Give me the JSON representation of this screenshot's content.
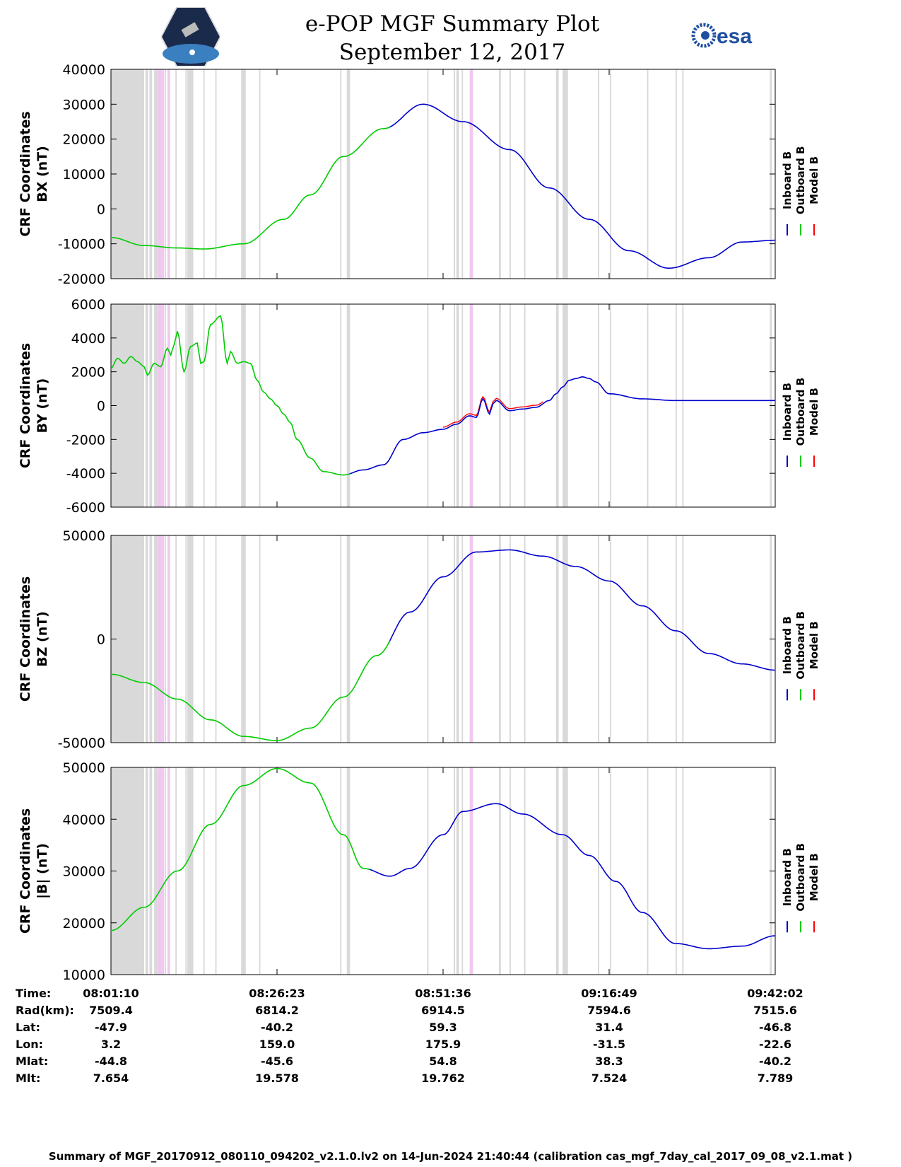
{
  "header": {
    "title": "e-POP MGF Summary Plot",
    "date": "September 12, 2017",
    "logo_left_name": "CASSIOPE",
    "logo_right_name": "esa"
  },
  "colors": {
    "inboard": "#0000cc",
    "outboard": "#00cc00",
    "model": "#ff0000",
    "gap_gray": "#d9d9d9",
    "gap_pink": "#f0c8f0"
  },
  "chart_data": [
    {
      "type": "line",
      "id": "bx",
      "ylabel_line1": "CRF Coordinates",
      "ylabel_line2": "BX (nT)",
      "ylim": [
        -20000,
        40000
      ],
      "yticks": [
        -20000,
        -10000,
        0,
        10000,
        20000,
        30000,
        40000
      ],
      "ytick_labels": [
        "-20000",
        "-10000",
        "0",
        "10000",
        "20000",
        "30000",
        "40000"
      ],
      "x": [
        0,
        0.05,
        0.1,
        0.14,
        0.2,
        0.26,
        0.3,
        0.35,
        0.41,
        0.47,
        0.53,
        0.6,
        0.66,
        0.72,
        0.78,
        0.84,
        0.9,
        0.95,
        1.0
      ],
      "series": [
        {
          "name": "Outboard B",
          "green_until": 0.42,
          "values": [
            -8200,
            -10500,
            -11200,
            -11500,
            -10000,
            -3000,
            4000,
            15000,
            23000,
            30000,
            25000,
            17000,
            6000,
            -3000,
            -12000,
            -17000,
            -14000,
            -9500,
            -9000
          ]
        }
      ]
    },
    {
      "type": "line",
      "id": "by",
      "ylabel_line1": "CRF Coordinates",
      "ylabel_line2": "BY (nT)",
      "ylim": [
        -6000,
        6000
      ],
      "yticks": [
        -6000,
        -4000,
        -2000,
        0,
        2000,
        4000,
        6000
      ],
      "ytick_labels": [
        "-6000",
        "-4000",
        "-2000",
        "0",
        "2000",
        "4000",
        "6000"
      ],
      "x": [
        0,
        0.01,
        0.02,
        0.03,
        0.04,
        0.05,
        0.055,
        0.065,
        0.075,
        0.085,
        0.09,
        0.095,
        0.1,
        0.11,
        0.12,
        0.13,
        0.135,
        0.14,
        0.15,
        0.165,
        0.175,
        0.18,
        0.19,
        0.2,
        0.21,
        0.22,
        0.23,
        0.24,
        0.25,
        0.26,
        0.27,
        0.28,
        0.3,
        0.32,
        0.35,
        0.38,
        0.41,
        0.44,
        0.47,
        0.5,
        0.52,
        0.54,
        0.55,
        0.56,
        0.57,
        0.575,
        0.58,
        0.6,
        0.62,
        0.64,
        0.66,
        0.67,
        0.68,
        0.69,
        0.7,
        0.71,
        0.72,
        0.73,
        0.75,
        0.8,
        0.85,
        0.9,
        0.95,
        0.98,
        1.0
      ],
      "series": [
        {
          "name": "Outboard B",
          "green_until": 0.36,
          "values": [
            2200,
            2800,
            2500,
            2900,
            2600,
            2300,
            1800,
            2500,
            2300,
            3400,
            3000,
            3600,
            4400,
            2000,
            3500,
            3700,
            2500,
            2600,
            4800,
            5300,
            2500,
            3200,
            2500,
            2600,
            2500,
            1500,
            800,
            400,
            0,
            -500,
            -1000,
            -2000,
            -3100,
            -3900,
            -4100,
            -3800,
            -3500,
            -2000,
            -1600,
            -1400,
            -1100,
            -600,
            -700,
            400,
            -500,
            100,
            300,
            -300,
            -200,
            -100,
            300,
            700,
            1100,
            1500,
            1600,
            1700,
            1600,
            1400,
            700,
            400,
            300,
            300,
            300,
            300,
            300
          ]
        }
      ]
    },
    {
      "type": "line",
      "id": "bz",
      "ylabel_line1": "CRF Coordinates",
      "ylabel_line2": "BZ (nT)",
      "ylim": [
        -50000,
        50000
      ],
      "yticks": [
        -50000,
        0,
        50000
      ],
      "ytick_labels": [
        "-50000",
        "0",
        "50000"
      ],
      "x": [
        0,
        0.05,
        0.1,
        0.15,
        0.2,
        0.25,
        0.3,
        0.35,
        0.4,
        0.45,
        0.5,
        0.55,
        0.6,
        0.65,
        0.7,
        0.75,
        0.8,
        0.85,
        0.9,
        0.95,
        1.0
      ],
      "series": [
        {
          "name": "Outboard B",
          "green_until": 0.42,
          "values": [
            -17000,
            -21000,
            -29000,
            -39000,
            -47000,
            -49000,
            -43000,
            -28000,
            -8000,
            13000,
            30000,
            42000,
            43000,
            40000,
            35000,
            28000,
            16000,
            4000,
            -7000,
            -12000,
            -15000
          ]
        }
      ]
    },
    {
      "type": "line",
      "id": "bmag",
      "ylabel_line1": "CRF Coordinates",
      "ylabel_line2": "|B| (nT)",
      "ylim": [
        10000,
        50000
      ],
      "yticks": [
        10000,
        20000,
        30000,
        40000,
        50000
      ],
      "ytick_labels": [
        "10000",
        "20000",
        "30000",
        "40000",
        "50000"
      ],
      "x": [
        0,
        0.05,
        0.1,
        0.15,
        0.2,
        0.25,
        0.3,
        0.35,
        0.38,
        0.42,
        0.45,
        0.5,
        0.53,
        0.58,
        0.62,
        0.68,
        0.72,
        0.76,
        0.8,
        0.85,
        0.9,
        0.95,
        1.0
      ],
      "series": [
        {
          "name": "Outboard B",
          "green_until": 0.39,
          "values": [
            18500,
            23000,
            30000,
            39000,
            46500,
            49800,
            47000,
            37000,
            30500,
            29000,
            30500,
            37000,
            41500,
            43000,
            41000,
            37000,
            33000,
            28000,
            22000,
            16000,
            15000,
            15500,
            17500
          ]
        }
      ]
    }
  ],
  "legend": {
    "inboard": "Inboard B",
    "outboard": "Outboard B",
    "model": "Model B"
  },
  "info_table": {
    "row_labels": [
      "Time:",
      "Rad(km):",
      "Lat:",
      "Lon:",
      "Mlat:",
      "Mlt:"
    ],
    "columns": [
      [
        "08:01:10",
        "7509.4",
        "-47.9",
        "3.2",
        "-44.8",
        "7.654"
      ],
      [
        "08:26:23",
        "6814.2",
        "-40.2",
        "159.0",
        "-45.6",
        "19.578"
      ],
      [
        "08:51:36",
        "6914.5",
        "59.3",
        "175.9",
        "54.8",
        "19.762"
      ],
      [
        "09:16:49",
        "7594.6",
        "31.4",
        "-31.5",
        "38.3",
        "7.524"
      ],
      [
        "09:42:02",
        "7515.6",
        "-46.8",
        "-22.6",
        "-40.2",
        "7.789"
      ]
    ]
  },
  "footer": "Summary of MGF_20170912_080110_094202_v2.1.0.lv2 on 14-Jun-2024 21:40:44 (calibration cas_mgf_7day_cal_2017_09_08_v2.1.mat )"
}
